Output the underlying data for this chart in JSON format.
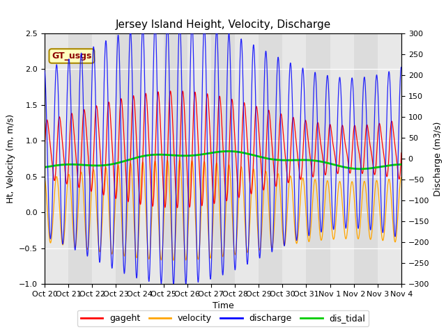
{
  "title": "Jersey Island Height, Velocity, Discharge",
  "xlabel": "Time",
  "ylabel_left": "Ht, Velocity (m, m/s)",
  "ylabel_right": "Discharge (m3/s)",
  "ylim_left": [
    -1.0,
    2.5
  ],
  "ylim_right": [
    -300,
    300
  ],
  "x_tick_labels": [
    "Oct 20",
    "Oct 21",
    "Oct 22",
    "Oct 23",
    "Oct 24",
    "Oct 25",
    "Oct 26",
    "Oct 27",
    "Oct 28",
    "Oct 29",
    "Oct 30",
    "Oct 31",
    "Nov 1",
    "Nov 2",
    "Nov 3",
    "Nov 4"
  ],
  "background_color": "#ffffff",
  "plot_bg_color": "#dcdcdc",
  "band_color": "#e8e8e8",
  "annotation_box_color": "#ffffc0",
  "annotation_text": "GT_usgs",
  "annotation_text_color": "#8b0000",
  "legend_labels": [
    "gageht",
    "velocity",
    "discharge",
    "dis_tidal"
  ],
  "line_colors": {
    "gageht": "#ff0000",
    "velocity": "#ffa500",
    "discharge": "#0000ff",
    "dis_tidal": "#00cc00"
  },
  "title_fontsize": 11,
  "axis_fontsize": 9,
  "tick_fontsize": 8
}
